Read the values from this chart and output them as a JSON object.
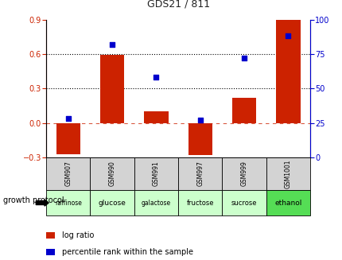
{
  "title": "GDS21 / 811",
  "samples": [
    "GSM907",
    "GSM990",
    "GSM991",
    "GSM997",
    "GSM999",
    "GSM1001"
  ],
  "protocols": [
    "raffinose",
    "glucose",
    "galactose",
    "fructose",
    "sucrose",
    "ethanol"
  ],
  "log_ratio": [
    -0.27,
    0.59,
    0.1,
    -0.28,
    0.22,
    0.9
  ],
  "percentile_rank": [
    28,
    82,
    58,
    27,
    72,
    88
  ],
  "bar_color": "#cc2200",
  "scatter_color": "#0000cc",
  "ylim_left": [
    -0.3,
    0.9
  ],
  "ylim_right": [
    0,
    100
  ],
  "yticks_left": [
    -0.3,
    0.0,
    0.3,
    0.6,
    0.9
  ],
  "yticks_right": [
    0,
    25,
    50,
    75,
    100
  ],
  "hline_dotted": [
    0.3,
    0.6
  ],
  "hline_dash_val": 0.0,
  "protocol_colors": [
    "#d4f5d4",
    "#ccffcc",
    "#ccffcc",
    "#ccffcc",
    "#ccffcc",
    "#66ee66"
  ],
  "sample_box_color": "#d3d3d3",
  "legend_items": [
    "log ratio",
    "percentile rank within the sample"
  ],
  "legend_colors": [
    "#cc2200",
    "#0000cc"
  ],
  "growth_protocol_label": "growth protocol",
  "title_color": "#222222",
  "left_tick_color": "#cc2200",
  "right_tick_color": "#0000cc",
  "bg_color": "#ffffff"
}
